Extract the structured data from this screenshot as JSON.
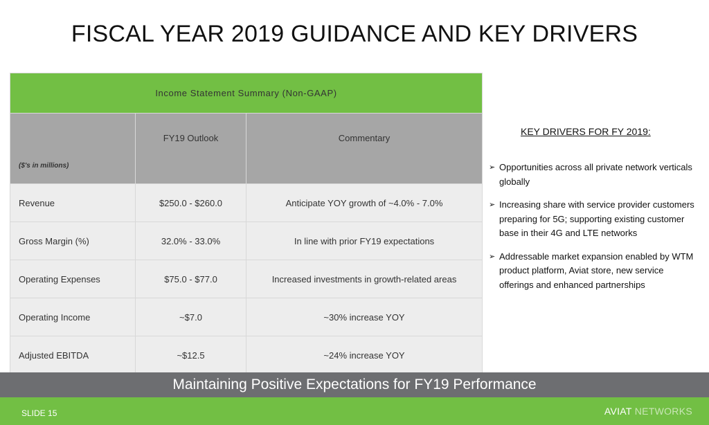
{
  "title": "FISCAL YEAR 2019 GUIDANCE AND KEY DRIVERS",
  "table": {
    "banner": "Income Statement Summary (Non-GAAP)",
    "units": "($'s in millions)",
    "col_outlook": "FY19 Outlook",
    "col_commentary": "Commentary",
    "rows": [
      {
        "metric": "Revenue",
        "outlook": "$250.0 - $260.0",
        "commentary": "Anticipate YOY growth of ~4.0% - 7.0%"
      },
      {
        "metric": "Gross Margin (%)",
        "outlook": "32.0% - 33.0%",
        "commentary": "In line with prior FY19 expectations"
      },
      {
        "metric": "Operating Expenses",
        "outlook": "$75.0 - $77.0",
        "commentary": "Increased investments in growth-related areas"
      },
      {
        "metric": "Operating Income",
        "outlook": "~$7.0",
        "commentary": "~30% increase YOY"
      },
      {
        "metric": "Adjusted EBITDA",
        "outlook": "~$12.5",
        "commentary": "~24% increase YOY"
      }
    ]
  },
  "key_drivers": {
    "title": "KEY DRIVERS FOR FY 2019:",
    "items": [
      {
        "line1": "Opportunities across all private network verticals",
        "line2": "globally"
      },
      {
        "line1": "Increasing share with service provider customers",
        "line2": "preparing for 5G; supporting existing customer",
        "line3": "base in their 4G and LTE networks"
      },
      {
        "line1": "Addressable market expansion enabled by WTM",
        "line2": "product platform, Aviat store, new service",
        "line3": "offerings and enhanced partnerships"
      }
    ]
  },
  "banner": "Maintaining Positive Expectations for FY19 Performance",
  "footer": {
    "slide": "SLIDE 15",
    "brand_part1": "AVIAT",
    "brand_part2": "NETWORKS"
  },
  "colors": {
    "green": "#72bf44",
    "gray_header": "#a6a6a6",
    "banner_gray": "#6d6e71"
  }
}
